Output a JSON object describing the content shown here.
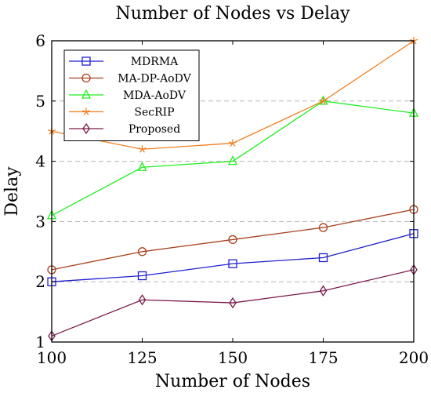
{
  "chart_data": {
    "type": "line",
    "title": "Number of Nodes vs Delay",
    "xlabel": "Number of Nodes",
    "ylabel": "Delay",
    "x": [
      100,
      125,
      150,
      175,
      200
    ],
    "xticks": [
      "100",
      "125",
      "150",
      "175",
      "200"
    ],
    "yticks": [
      "1",
      "2",
      "3",
      "4",
      "5",
      "6"
    ],
    "xlim": [
      100,
      200
    ],
    "ylim": [
      1,
      6
    ],
    "grid": "horizontal dashed",
    "legend_position": "top-left",
    "series": [
      {
        "name": "MDRMA",
        "values": [
          2.0,
          2.1,
          2.3,
          2.4,
          2.8
        ],
        "color": "#1f1fd0",
        "marker": "square"
      },
      {
        "name": "MA-DP-AoDV",
        "values": [
          2.2,
          2.5,
          2.7,
          2.9,
          3.2
        ],
        "color": "#a8401e",
        "marker": "circle"
      },
      {
        "name": "MDA-AoDV",
        "values": [
          3.1,
          3.9,
          4.0,
          5.0,
          4.8
        ],
        "color": "#22ee22",
        "marker": "triangle"
      },
      {
        "name": "SecRIP",
        "values": [
          4.5,
          4.2,
          4.3,
          5.0,
          6.0
        ],
        "color": "#f08020",
        "marker": "star"
      },
      {
        "name": "Proposed",
        "values": [
          1.1,
          1.7,
          1.65,
          1.85,
          2.2
        ],
        "color": "#7a1a4a",
        "marker": "diamond"
      }
    ]
  }
}
